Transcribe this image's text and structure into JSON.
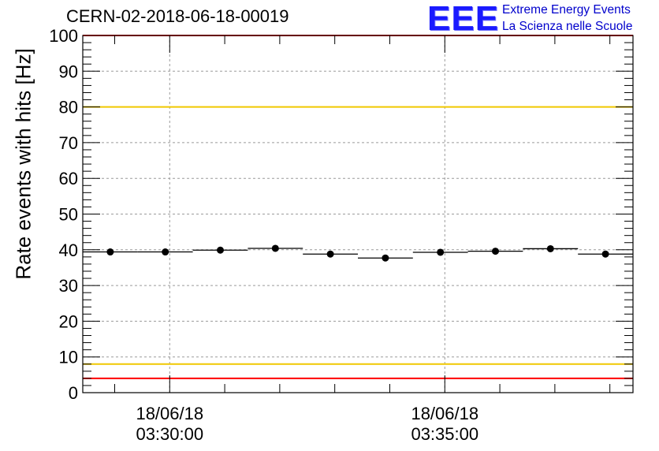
{
  "title": "CERN-02-2018-06-18-00019",
  "logo": {
    "mark": "EEE",
    "line1": "Extreme Energy Events",
    "line2": "La Scienza nelle Scuole",
    "color": "#1a1aff"
  },
  "chart_data": {
    "type": "scatter",
    "title": "CERN-02-2018-06-18-00019",
    "ylabel": "Rate events with hits [Hz]",
    "xlabel": "",
    "ylim": [
      0,
      100
    ],
    "yticks": [
      0,
      10,
      20,
      30,
      40,
      50,
      60,
      70,
      80,
      90,
      100
    ],
    "xlim_minutes": [
      3.42,
      13.42
    ],
    "xtick_labels": [
      {
        "date": "18/06/18",
        "time": "03:30:00",
        "minute": 5
      },
      {
        "date": "18/06/18",
        "time": "03:35:00",
        "minute": 10
      }
    ],
    "grid": true,
    "series": [
      {
        "x_start_minute": [
          3.42,
          4.42,
          5.42,
          6.42,
          7.42,
          8.42,
          9.42,
          10.42,
          11.42,
          12.42
        ],
        "values": [
          39.4,
          39.4,
          39.9,
          40.4,
          38.8,
          37.7,
          39.3,
          39.6,
          40.3,
          38.8
        ],
        "errors": [
          0.8,
          0.8,
          0.8,
          0.8,
          0.8,
          0.8,
          0.8,
          0.8,
          0.8,
          0.8
        ]
      }
    ],
    "reference_lines": [
      {
        "value": 100,
        "color": "#ff0000"
      },
      {
        "value": 80,
        "color": "#f0c800"
      },
      {
        "value": 8,
        "color": "#f0c800"
      },
      {
        "value": 4,
        "color": "#ff0000"
      }
    ]
  }
}
